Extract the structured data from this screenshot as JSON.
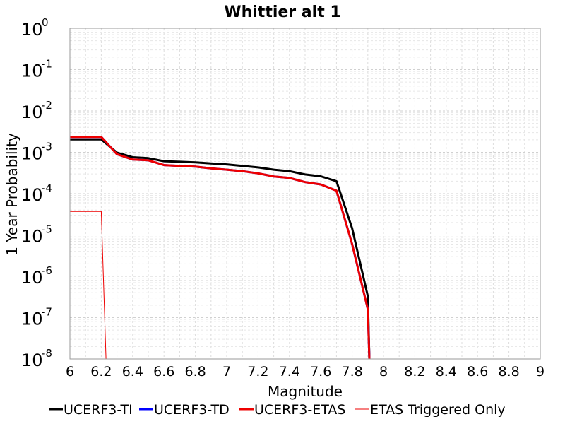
{
  "chart_data": {
    "type": "line",
    "title": "Whittier alt 1",
    "xlabel": "Magnitude",
    "ylabel": "1 Year Probability",
    "xlim": [
      6,
      9
    ],
    "ylim": [
      1e-08,
      1
    ],
    "yscale": "log",
    "grid": true,
    "legend_position": "bottom",
    "xticks": [
      "6",
      "6.2",
      "6.4",
      "6.6",
      "6.8",
      "7",
      "7.2",
      "7.4",
      "7.6",
      "7.8",
      "8",
      "8.2",
      "8.4",
      "8.6",
      "8.8",
      "9"
    ],
    "yticks": [
      {
        "base": "10",
        "exp": "0"
      },
      {
        "base": "10",
        "exp": "-1"
      },
      {
        "base": "10",
        "exp": "-2"
      },
      {
        "base": "10",
        "exp": "-3"
      },
      {
        "base": "10",
        "exp": "-4"
      },
      {
        "base": "10",
        "exp": "-5"
      },
      {
        "base": "10",
        "exp": "-6"
      },
      {
        "base": "10",
        "exp": "-7"
      },
      {
        "base": "10",
        "exp": "-8"
      }
    ],
    "series": [
      {
        "name": "UCERF3-TI",
        "color": "#000000",
        "width": 3,
        "x": [
          6.0,
          6.2,
          6.3,
          6.4,
          6.5,
          6.6,
          6.7,
          6.8,
          6.9,
          7.0,
          7.1,
          7.2,
          7.3,
          7.4,
          7.5,
          7.6,
          7.7,
          7.8,
          7.9,
          7.91
        ],
        "y": [
          0.00205,
          0.00205,
          0.00098,
          0.00076,
          0.00072,
          0.00061,
          0.00059,
          0.00057,
          0.00054,
          0.00051,
          0.00047,
          0.00043,
          0.00038,
          0.00035,
          0.00029,
          0.000262,
          0.0002,
          1.45e-05,
          3.3e-07,
          1e-08
        ]
      },
      {
        "name": "UCERF3-TD",
        "color": "#0000ff",
        "width": 3,
        "x": [
          6.0,
          6.2,
          6.3,
          6.4,
          6.5,
          6.6,
          6.7,
          6.8,
          6.9,
          7.0,
          7.1,
          7.2,
          7.3,
          7.4,
          7.5,
          7.6,
          7.7,
          7.8,
          7.9,
          7.91
        ],
        "y": [
          0.00235,
          0.00235,
          0.0009,
          0.00067,
          0.00064,
          0.00049,
          0.00047,
          0.00045,
          0.00041,
          0.00038,
          0.00035,
          0.00031,
          0.00026,
          0.00024,
          0.00019,
          0.000167,
          0.000118,
          6e-06,
          1.6e-07,
          1e-08
        ]
      },
      {
        "name": "UCERF3-ETAS",
        "color": "#ee0000",
        "width": 3,
        "x": [
          6.0,
          6.2,
          6.3,
          6.4,
          6.5,
          6.6,
          6.7,
          6.8,
          6.9,
          7.0,
          7.1,
          7.2,
          7.3,
          7.4,
          7.5,
          7.6,
          7.7,
          7.8,
          7.9,
          7.91
        ],
        "y": [
          0.00235,
          0.00235,
          0.0009,
          0.00067,
          0.00064,
          0.00049,
          0.00047,
          0.00045,
          0.00041,
          0.00038,
          0.00035,
          0.00031,
          0.00026,
          0.00024,
          0.00019,
          0.000167,
          0.000118,
          6e-06,
          1.6e-07,
          1e-08
        ]
      },
      {
        "name": "ETAS Triggered Only",
        "color": "#ee0000",
        "width": 1,
        "x": [
          6.0,
          6.2,
          6.23
        ],
        "y": [
          3.7e-05,
          3.7e-05,
          1e-08
        ]
      }
    ]
  }
}
